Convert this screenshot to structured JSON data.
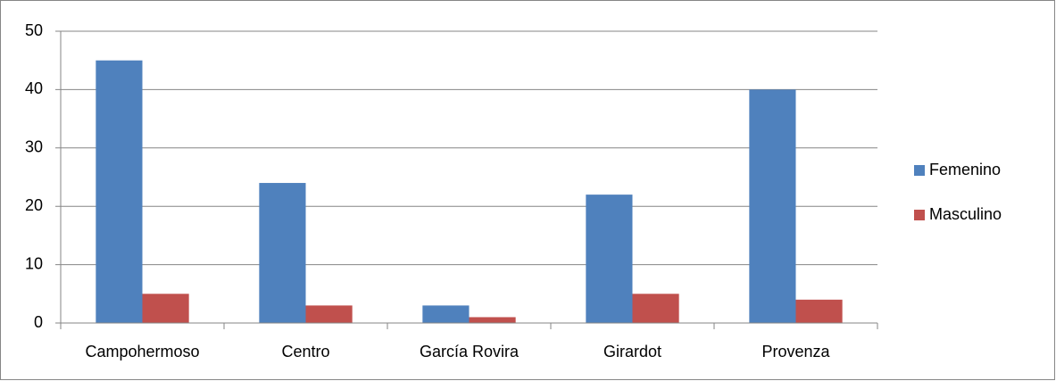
{
  "chart_data": {
    "type": "bar",
    "categories": [
      "Campohermoso",
      "Centro",
      "García Rovira",
      "Girardot",
      "Provenza"
    ],
    "series": [
      {
        "name": "Femenino",
        "color": "#4f81bd",
        "values": [
          45,
          24,
          3,
          22,
          40
        ]
      },
      {
        "name": "Masculino",
        "color": "#c0504d",
        "values": [
          5,
          3,
          1,
          5,
          4
        ]
      }
    ],
    "ylim": [
      0,
      50
    ],
    "yticks": [
      0,
      10,
      20,
      30,
      40,
      50
    ],
    "grid": true,
    "legend": "right"
  }
}
